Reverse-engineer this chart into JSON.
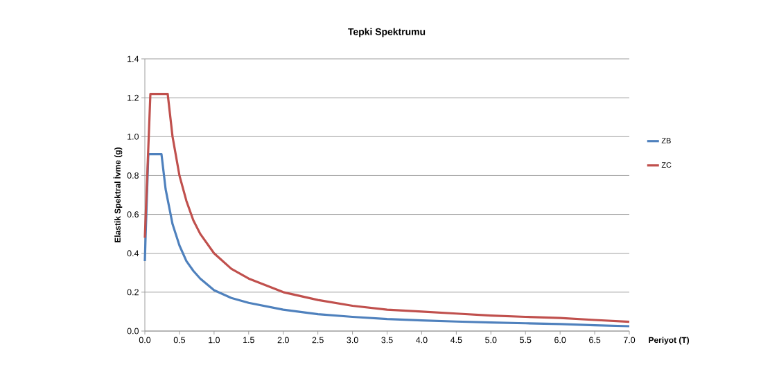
{
  "chart_data": {
    "type": "line",
    "title": "Tepki Spektrumu",
    "xlabel": "Periyot (T)",
    "ylabel": "Elastik Spektral İvme (g)",
    "xlim": [
      0,
      7
    ],
    "ylim": [
      0,
      1.4
    ],
    "xticks": [
      {
        "value": 0,
        "label": "0.0"
      },
      0.5,
      {
        "value": 1,
        "label": "1.0"
      },
      1.5,
      {
        "value": 2,
        "label": "2.0"
      },
      2.5,
      {
        "value": 3,
        "label": "3.0"
      },
      3.5,
      {
        "value": 4,
        "label": "4.0"
      },
      4.5,
      {
        "value": 5,
        "label": "5.0"
      },
      5.5,
      {
        "value": 6,
        "label": "6.0"
      },
      6.5,
      {
        "value": 7,
        "label": "7.0"
      }
    ],
    "yticks": [
      {
        "value": 0,
        "label": "0.0"
      },
      0.2,
      0.4,
      0.6,
      0.8,
      {
        "value": 1,
        "label": "1.0"
      },
      1.2,
      1.4
    ],
    "grid": "y",
    "legend": "right",
    "marker": "none",
    "line_style": "solid",
    "series": [
      {
        "name": "ZB",
        "color": "#4f81bd",
        "x": [
          0,
          0.01,
          0.05,
          0.24,
          0.3,
          0.4,
          0.5,
          0.6,
          0.7,
          0.8,
          1.0,
          1.25,
          1.5,
          2.0,
          2.5,
          3.0,
          3.5,
          4.0,
          4.5,
          5.0,
          5.5,
          6.0,
          6.5,
          7.0
        ],
        "values": [
          0.36,
          0.48,
          0.91,
          0.91,
          0.73,
          0.55,
          0.44,
          0.36,
          0.31,
          0.27,
          0.21,
          0.17,
          0.145,
          0.11,
          0.087,
          0.073,
          0.062,
          0.055,
          0.049,
          0.044,
          0.04,
          0.036,
          0.03,
          0.025
        ]
      },
      {
        "name": "ZC",
        "color": "#c0504d",
        "x": [
          0,
          0.08,
          0.33,
          0.4,
          0.5,
          0.6,
          0.7,
          0.8,
          1.0,
          1.25,
          1.5,
          2.0,
          2.5,
          3.0,
          3.5,
          4.0,
          4.5,
          5.0,
          5.5,
          6.0,
          6.5,
          7.0
        ],
        "values": [
          0.48,
          1.22,
          1.22,
          1.0,
          0.8,
          0.67,
          0.57,
          0.5,
          0.4,
          0.32,
          0.27,
          0.2,
          0.16,
          0.13,
          0.11,
          0.1,
          0.09,
          0.08,
          0.073,
          0.067,
          0.057,
          0.048
        ]
      }
    ]
  }
}
